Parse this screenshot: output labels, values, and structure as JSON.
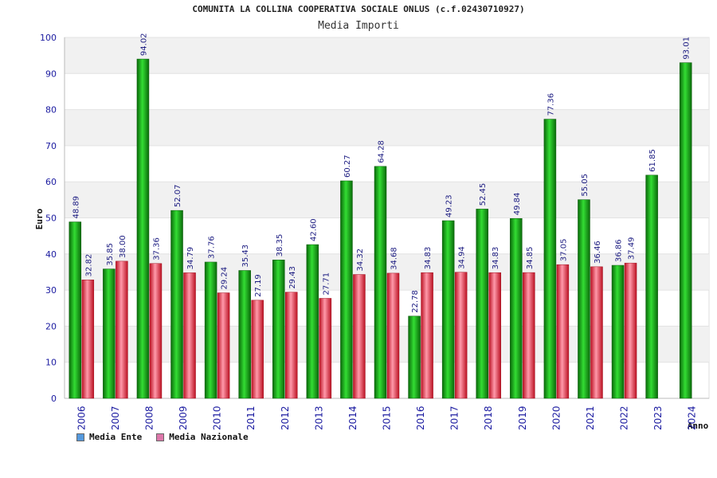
{
  "chart_data": {
    "type": "bar",
    "title": "COMUNITA LA COLLINA COOPERATIVA SOCIALE ONLUS (c.f.02430710927)",
    "subtitle": "Media Importi",
    "xlabel": "Anno",
    "ylabel": "Euro",
    "ylim": [
      0,
      100
    ],
    "yticks": [
      "0",
      "10",
      "20",
      "30",
      "40",
      "50",
      "60",
      "70",
      "80",
      "90",
      "100"
    ],
    "categories": [
      "2006",
      "2007",
      "2008",
      "2009",
      "2010",
      "2011",
      "2012",
      "2013",
      "2014",
      "2015",
      "2016",
      "2017",
      "2018",
      "2019",
      "2020",
      "2021",
      "2022",
      "2023",
      "2024"
    ],
    "series": [
      {
        "name": "Media Ente",
        "color": "#22aa22",
        "legend_color": "#5599dd",
        "values": [
          48.89,
          35.85,
          94.02,
          52.07,
          37.76,
          35.43,
          38.35,
          42.6,
          60.27,
          64.28,
          22.78,
          49.23,
          52.45,
          49.84,
          77.36,
          55.05,
          36.86,
          61.85,
          93.01
        ],
        "labels": [
          "48.89",
          "35.85",
          "94.02",
          "52.07",
          "37.76",
          "35.43",
          "38.35",
          "42.60",
          "60.27",
          "64.28",
          "22.78",
          "49.23",
          "52.45",
          "49.84",
          "77.36",
          "55.05",
          "36.86",
          "61.85",
          "93.01"
        ]
      },
      {
        "name": "Media Nazionale",
        "color": "#dd3344",
        "legend_color": "#dd77aa",
        "values": [
          32.82,
          38.0,
          37.36,
          34.79,
          29.24,
          27.19,
          29.43,
          27.71,
          34.32,
          34.68,
          34.83,
          34.94,
          34.83,
          34.85,
          37.05,
          36.46,
          37.49,
          null,
          null
        ],
        "labels": [
          "32.82",
          "38.00",
          "37.36",
          "34.79",
          "29.24",
          "27.19",
          "29.43",
          "27.71",
          "34.32",
          "34.68",
          "34.83",
          "34.94",
          "34.83",
          "34.85",
          "37.05",
          "36.46",
          "37.49",
          null,
          null
        ]
      }
    ],
    "grid": true,
    "legend_position": "bottom-left"
  }
}
